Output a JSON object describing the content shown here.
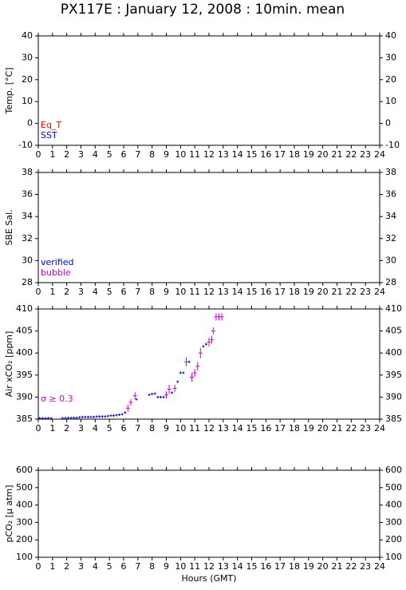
{
  "title": "PX117E : January 12, 2008 : 10min. mean",
  "chart_data": [
    {
      "type": "scatter",
      "ylabel": "Temp. [°C]",
      "xlim": [
        0,
        24
      ],
      "xticks": [
        0,
        1,
        2,
        3,
        4,
        5,
        6,
        7,
        8,
        9,
        10,
        11,
        12,
        13,
        14,
        15,
        16,
        17,
        18,
        19,
        20,
        21,
        22,
        23,
        24
      ],
      "ylim": [
        -10,
        40
      ],
      "yticks": [
        -10,
        0,
        10,
        20,
        30,
        40
      ],
      "legend": "lower left",
      "series": [
        {
          "name": "Eq_T",
          "color": "#ee0000",
          "x": [],
          "values": []
        },
        {
          "name": "SST",
          "color": "#0000cc",
          "x": [],
          "values": []
        }
      ]
    },
    {
      "type": "scatter",
      "ylabel": "SBE Sal.",
      "xlim": [
        0,
        24
      ],
      "xticks": [
        0,
        1,
        2,
        3,
        4,
        5,
        6,
        7,
        8,
        9,
        10,
        11,
        12,
        13,
        14,
        15,
        16,
        17,
        18,
        19,
        20,
        21,
        22,
        23,
        24
      ],
      "ylim": [
        28,
        38
      ],
      "yticks": [
        28,
        30,
        32,
        34,
        36,
        38
      ],
      "legend": "lower left",
      "series": [
        {
          "name": "verified",
          "color": "#0000cc",
          "x": [],
          "values": []
        },
        {
          "name": "bubble",
          "color": "#cc00cc",
          "x": [],
          "values": []
        }
      ]
    },
    {
      "type": "scatter",
      "ylabel": "Air xCO₂ [ppm]",
      "xlim": [
        0,
        24
      ],
      "xticks": [
        0,
        1,
        2,
        3,
        4,
        5,
        6,
        7,
        8,
        9,
        10,
        11,
        12,
        13,
        14,
        15,
        16,
        17,
        18,
        19,
        20,
        21,
        22,
        23,
        24
      ],
      "ylim": [
        385,
        410
      ],
      "yticks": [
        385,
        390,
        395,
        400,
        405,
        410
      ],
      "legend": "lower left",
      "series": [
        {
          "name": "σ ≥ 0.3",
          "color": "#cc00cc",
          "x": [
            6.3,
            6.5,
            6.8,
            9.0,
            9.2,
            9.6,
            10.4,
            10.8,
            11.0,
            11.2,
            11.4,
            12.0,
            12.2,
            12.3,
            12.5,
            12.7,
            12.9
          ],
          "values": [
            387.5,
            388.8,
            390.3,
            390.5,
            391.8,
            392,
            398,
            394.5,
            395.5,
            397,
            400,
            402.5,
            403,
            405,
            408.2,
            408.2,
            408.2
          ],
          "errors": [
            0.8,
            0.7,
            0.8,
            0.8,
            1.0,
            0.8,
            1.0,
            1.0,
            0.9,
            1.0,
            1.2,
            1.0,
            0.9,
            0.8,
            0.8,
            0.8,
            0.8
          ]
        },
        {
          "color": "#0000cc",
          "x": [
            0.1,
            0.3,
            0.5,
            0.7,
            0.9,
            1.7,
            1.9,
            2.1,
            2.3,
            2.5,
            2.7,
            2.9,
            3.1,
            3.3,
            3.5,
            3.7,
            3.9,
            4.1,
            4.3,
            4.5,
            4.7,
            4.9,
            5.1,
            5.3,
            5.5,
            5.7,
            5.9,
            6.1,
            6.9,
            7.8,
            8.0,
            8.2,
            8.4,
            8.6,
            8.8,
            9.4,
            9.8,
            10.0,
            10.2,
            10.6,
            11.6,
            11.8
          ],
          "values": [
            385.2,
            385.2,
            385.2,
            385.2,
            385.2,
            385.2,
            385.2,
            385.3,
            385.3,
            385.3,
            385.3,
            385.4,
            385.5,
            385.5,
            385.5,
            385.5,
            385.5,
            385.6,
            385.6,
            385.6,
            385.6,
            385.7,
            385.8,
            385.8,
            385.9,
            386,
            386.1,
            386.5,
            389.5,
            390.5,
            390.7,
            390.8,
            390,
            390,
            390,
            391,
            393.5,
            395.5,
            395.5,
            398,
            401.5,
            402
          ]
        }
      ]
    },
    {
      "type": "scatter",
      "ylabel": "pCO₂ [μ atm]",
      "xlabel": "Hours (GMT)",
      "xlim": [
        0,
        24
      ],
      "xticks": [
        0,
        1,
        2,
        3,
        4,
        5,
        6,
        7,
        8,
        9,
        10,
        11,
        12,
        13,
        14,
        15,
        16,
        17,
        18,
        19,
        20,
        21,
        22,
        23,
        24
      ],
      "ylim": [
        100,
        600
      ],
      "yticks": [
        100,
        200,
        300,
        400,
        500,
        600
      ],
      "legend": "lower left",
      "series": []
    }
  ]
}
